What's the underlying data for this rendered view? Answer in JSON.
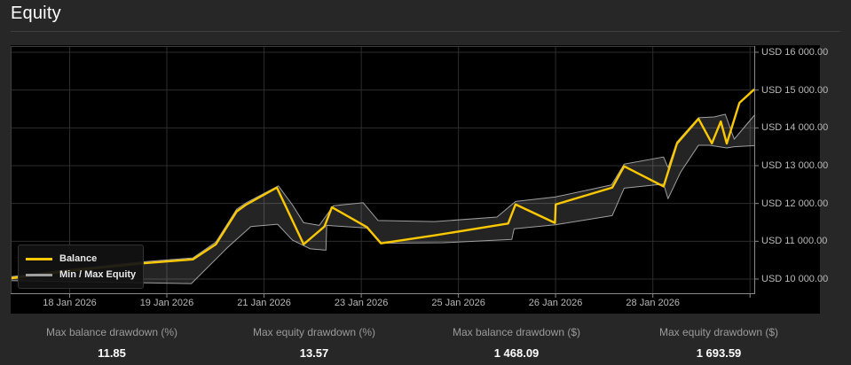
{
  "page": {
    "title": "Equity"
  },
  "colors": {
    "page_bg": "#272727",
    "chart_bg": "#000000",
    "grid": "#2d2d2d",
    "plot_border": "#3d3d3d",
    "axis": "#8a8a8a",
    "balance_line": "#fcc800",
    "equity_line": "#9f9f9f",
    "band_fill": "rgba(255,255,255,0.14)"
  },
  "legend": {
    "items": [
      {
        "id": "balance",
        "label": "Balance",
        "color": "#fcc800"
      },
      {
        "id": "minmax",
        "label": "Min / Max Equity",
        "color": "#9f9f9f"
      }
    ]
  },
  "stats": [
    {
      "label": "Max balance drawdown (%)",
      "value": "11.85"
    },
    {
      "label": "Max equity drawdown (%)",
      "value": "13.57"
    },
    {
      "label": "Max balance drawdown ($)",
      "value": "1 468.09"
    },
    {
      "label": "Max equity drawdown ($)",
      "value": "1 693.59"
    }
  ],
  "chart_data": {
    "type": "line",
    "title": "Equity",
    "grid": true,
    "legend_position": "bottom-left",
    "y_axis": {
      "currency": "USD",
      "ylim": [
        9625,
        16165
      ],
      "ticks": [
        {
          "value": 16000,
          "label": "USD 16 000.00"
        },
        {
          "value": 15000,
          "label": "USD 15 000.00"
        },
        {
          "value": 14000,
          "label": "USD 14 000.00"
        },
        {
          "value": 13000,
          "label": "USD 13 000.00"
        },
        {
          "value": 12000,
          "label": "USD 12 000.00"
        },
        {
          "value": 11000,
          "label": "USD 11 000.00"
        },
        {
          "value": 10000,
          "label": "USD 10 000.00"
        }
      ]
    },
    "x_axis": {
      "ticks": [
        {
          "x": 0.0794,
          "label": "18 Jan 2026"
        },
        {
          "x": 0.21,
          "label": "19 Jan 2026"
        },
        {
          "x": 0.3408,
          "label": "21 Jan 2026"
        },
        {
          "x": 0.4715,
          "label": "23 Jan 2026"
        },
        {
          "x": 0.6022,
          "label": "25 Jan 2026"
        },
        {
          "x": 0.7328,
          "label": "26 Jan 2026"
        },
        {
          "x": 0.8636,
          "label": "28 Jan 2026"
        },
        {
          "x": 0.9943,
          "label": ""
        }
      ]
    },
    "series": [
      {
        "name": "Balance",
        "color": "#fcc800",
        "width": 2.4,
        "points": [
          [
            0.0,
            10020
          ],
          [
            0.081,
            10220
          ],
          [
            0.18,
            10420
          ],
          [
            0.245,
            10520
          ],
          [
            0.276,
            10920
          ],
          [
            0.304,
            11790
          ],
          [
            0.316,
            11960
          ],
          [
            0.358,
            12420
          ],
          [
            0.394,
            10920
          ],
          [
            0.422,
            11390
          ],
          [
            0.432,
            11900
          ],
          [
            0.479,
            11375
          ],
          [
            0.498,
            10945
          ],
          [
            0.57,
            11155
          ],
          [
            0.669,
            11470
          ],
          [
            0.679,
            11975
          ],
          [
            0.732,
            11485
          ],
          [
            0.733,
            11975
          ],
          [
            0.809,
            12420
          ],
          [
            0.825,
            12985
          ],
          [
            0.878,
            12450
          ],
          [
            0.896,
            13585
          ],
          [
            0.925,
            14240
          ],
          [
            0.943,
            13590
          ],
          [
            0.955,
            14170
          ],
          [
            0.963,
            13585
          ],
          [
            0.98,
            14660
          ],
          [
            1.0,
            15020
          ]
        ]
      },
      {
        "name": "Max Equity",
        "color": "#9f9f9f",
        "width": 1,
        "points": [
          [
            0.0,
            10060
          ],
          [
            0.081,
            10260
          ],
          [
            0.18,
            10460
          ],
          [
            0.245,
            10560
          ],
          [
            0.276,
            10980
          ],
          [
            0.304,
            11850
          ],
          [
            0.316,
            12010
          ],
          [
            0.36,
            12465
          ],
          [
            0.379,
            11960
          ],
          [
            0.394,
            11490
          ],
          [
            0.415,
            11420
          ],
          [
            0.434,
            11940
          ],
          [
            0.474,
            12020
          ],
          [
            0.494,
            11550
          ],
          [
            0.57,
            11520
          ],
          [
            0.654,
            11640
          ],
          [
            0.679,
            12055
          ],
          [
            0.732,
            12170
          ],
          [
            0.808,
            12490
          ],
          [
            0.825,
            13040
          ],
          [
            0.878,
            13230
          ],
          [
            0.884,
            12950
          ],
          [
            0.896,
            13630
          ],
          [
            0.925,
            14270
          ],
          [
            0.946,
            14290
          ],
          [
            0.961,
            14360
          ],
          [
            0.973,
            13700
          ],
          [
            1.0,
            14330
          ]
        ]
      },
      {
        "name": "Min Equity",
        "color": "#9f9f9f",
        "width": 1,
        "points": [
          [
            0.0,
            9960
          ],
          [
            0.117,
            9920
          ],
          [
            0.243,
            9880
          ],
          [
            0.292,
            10840
          ],
          [
            0.323,
            11390
          ],
          [
            0.359,
            11450
          ],
          [
            0.379,
            11030
          ],
          [
            0.403,
            10800
          ],
          [
            0.424,
            10765
          ],
          [
            0.425,
            11420
          ],
          [
            0.479,
            11350
          ],
          [
            0.498,
            10950
          ],
          [
            0.582,
            10960
          ],
          [
            0.674,
            11050
          ],
          [
            0.677,
            11330
          ],
          [
            0.732,
            11435
          ],
          [
            0.809,
            11680
          ],
          [
            0.825,
            12405
          ],
          [
            0.878,
            12515
          ],
          [
            0.884,
            12125
          ],
          [
            0.901,
            12830
          ],
          [
            0.925,
            13540
          ],
          [
            0.94,
            13540
          ],
          [
            0.963,
            13470
          ],
          [
            0.973,
            13500
          ],
          [
            1.0,
            13530
          ]
        ]
      }
    ],
    "band": {
      "between": [
        "Max Equity",
        "Min Equity"
      ],
      "fill": "rgba(255,255,255,0.14)"
    }
  }
}
